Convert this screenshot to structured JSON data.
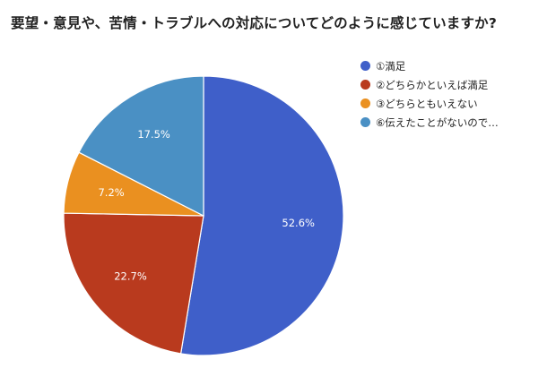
{
  "chart_data": {
    "type": "pie",
    "title": "要望・意見や、苦情・トラブルへの対応についてどのように感じていますか?",
    "legend_position": "right",
    "slice_order": "clockwise from 12 o'clock",
    "slices": [
      {
        "label": "①満足",
        "value": 52.6,
        "value_label": "52.6%",
        "color": "#3f5fc9"
      },
      {
        "label": "②どちらかといえば満足",
        "value": 22.7,
        "value_label": "22.7%",
        "color": "#b93a1e"
      },
      {
        "label": "③どちらともいえない",
        "value": 7.2,
        "value_label": "7.2%",
        "color": "#ea9020"
      },
      {
        "label": "⑥伝えたことがないので…",
        "value": 17.5,
        "value_label": "17.5%",
        "color": "#4a90c4"
      }
    ]
  }
}
